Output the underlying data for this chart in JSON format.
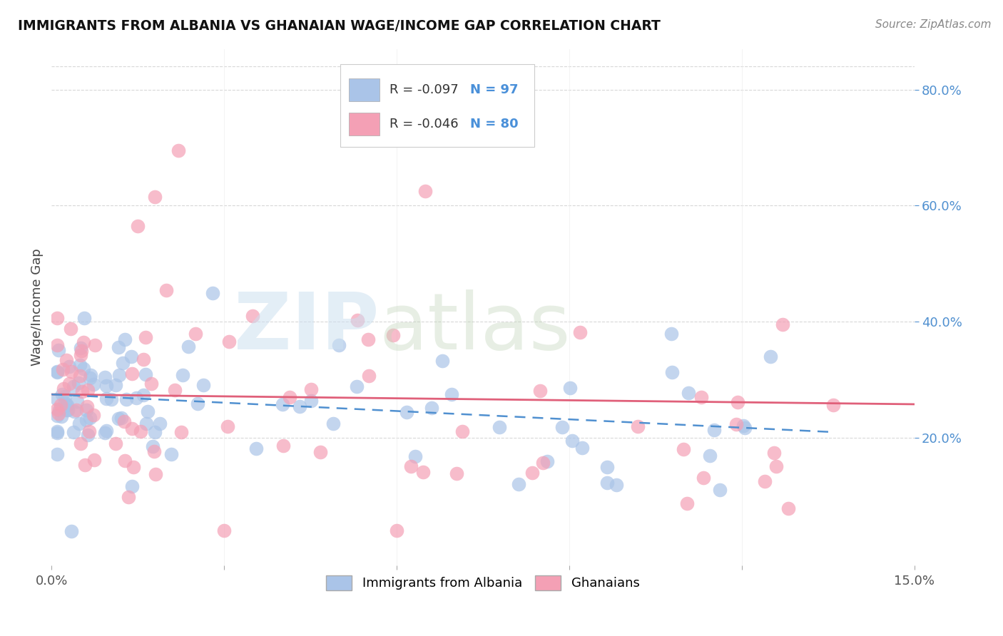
{
  "title": "IMMIGRANTS FROM ALBANIA VS GHANAIAN WAGE/INCOME GAP CORRELATION CHART",
  "source": "Source: ZipAtlas.com",
  "ylabel": "Wage/Income Gap",
  "legend_label1": "Immigrants from Albania",
  "legend_label2": "Ghanaians",
  "r1": -0.097,
  "n1": 97,
  "r2": -0.046,
  "n2": 80,
  "color1": "#aac4e8",
  "color2": "#f4a0b5",
  "line1_color": "#5090d0",
  "line2_color": "#e0607a",
  "xlim": [
    0.0,
    0.15
  ],
  "ylim": [
    -0.02,
    0.87
  ],
  "ytick_vals": [
    0.2,
    0.4,
    0.6,
    0.8
  ],
  "ytick_labels": [
    "20.0%",
    "40.0%",
    "60.0%",
    "80.0%"
  ],
  "background_color": "#ffffff",
  "grid_color": "#d8d8d8"
}
